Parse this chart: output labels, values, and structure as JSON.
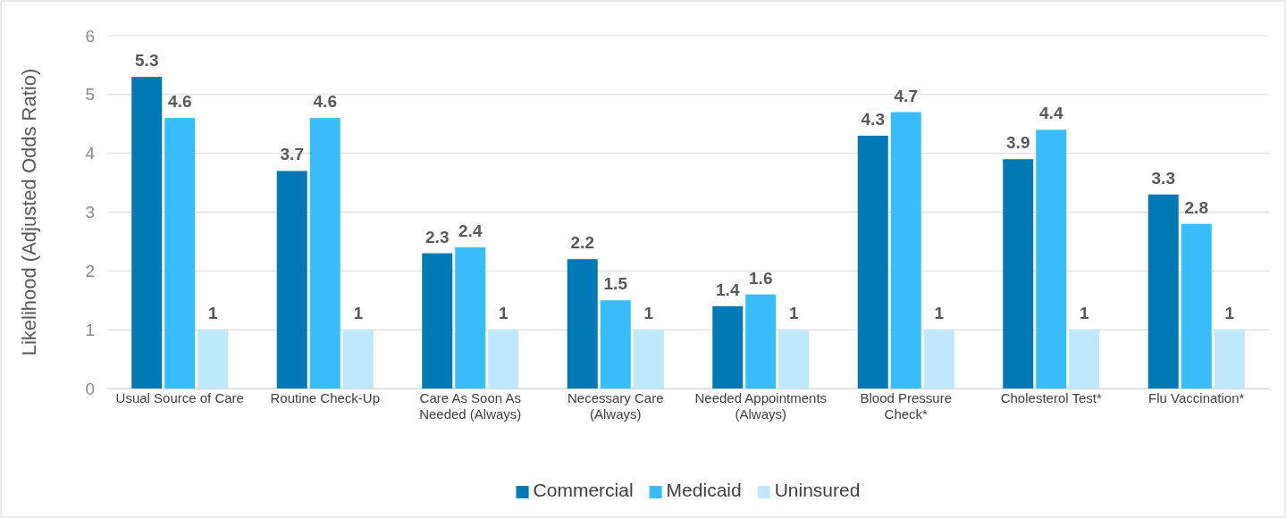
{
  "chart_data": {
    "type": "bar",
    "ylabel": "Likelihood (Adjusted Odds Ratio)",
    "categories": [
      "Usual Source of Care",
      "Routine Check-Up",
      "Care As Soon As Needed (Always)",
      "Necessary Care (Always)",
      "Needed Appointments (Always)",
      "Blood Pressure Check*",
      "Cholesterol Test*",
      "Flu Vaccination*"
    ],
    "series": [
      {
        "name": "Commercial",
        "color": "#0079b5",
        "values": [
          5.3,
          3.7,
          2.3,
          2.2,
          1.4,
          4.3,
          3.9,
          3.3
        ]
      },
      {
        "name": "Medicaid",
        "color": "#38bdf8",
        "values": [
          4.6,
          4.6,
          2.4,
          1.5,
          1.6,
          4.7,
          4.4,
          2.8
        ]
      },
      {
        "name": "Uninsured",
        "color": "#bfe8fb",
        "values": [
          1,
          1,
          1,
          1,
          1,
          1,
          1,
          1
        ]
      }
    ],
    "ylim": [
      0,
      6
    ],
    "yticks": [
      0,
      1,
      2,
      3,
      4,
      5,
      6
    ],
    "grid": "y",
    "legend": "bottom",
    "data_labels": true
  }
}
